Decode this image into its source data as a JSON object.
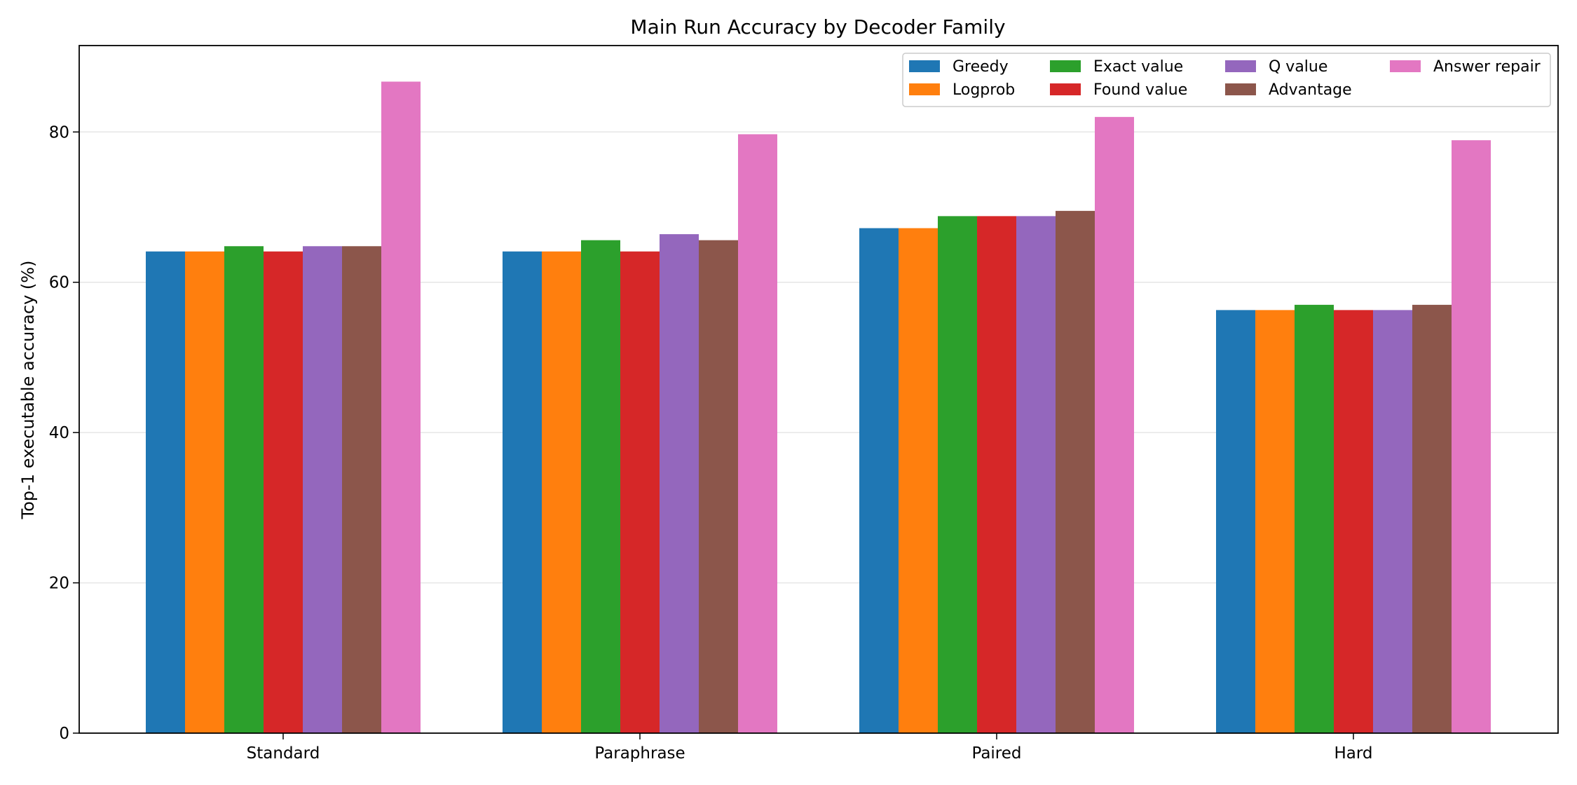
{
  "chart_data": {
    "type": "bar",
    "title": "Main Run Accuracy by Decoder Family",
    "xlabel": "",
    "ylabel": "Top-1 executable accuracy (%)",
    "categories": [
      "Standard",
      "Paraphrase",
      "Paired",
      "Hard"
    ],
    "ylim": [
      0,
      91.5
    ],
    "yticks": [
      0,
      20,
      40,
      60,
      80
    ],
    "grid": "y",
    "legend_position": "top-right",
    "legend_columns": 4,
    "series": [
      {
        "name": "Greedy",
        "color": "#1f77b4",
        "values": [
          64.1,
          64.1,
          67.2,
          56.3
        ]
      },
      {
        "name": "Logprob",
        "color": "#ff7f0e",
        "values": [
          64.1,
          64.1,
          67.2,
          56.3
        ]
      },
      {
        "name": "Exact value",
        "color": "#2ca02c",
        "values": [
          64.8,
          65.6,
          68.8,
          57.0
        ]
      },
      {
        "name": "Found value",
        "color": "#d62728",
        "values": [
          64.1,
          64.1,
          68.8,
          56.3
        ]
      },
      {
        "name": "Q value",
        "color": "#9467bd",
        "values": [
          64.8,
          66.4,
          68.8,
          56.3
        ]
      },
      {
        "name": "Advantage",
        "color": "#8c564b",
        "values": [
          64.8,
          65.6,
          69.5,
          57.0
        ]
      },
      {
        "name": "Answer repair",
        "color": "#e377c2",
        "values": [
          86.7,
          79.7,
          82.0,
          78.9
        ]
      }
    ]
  }
}
